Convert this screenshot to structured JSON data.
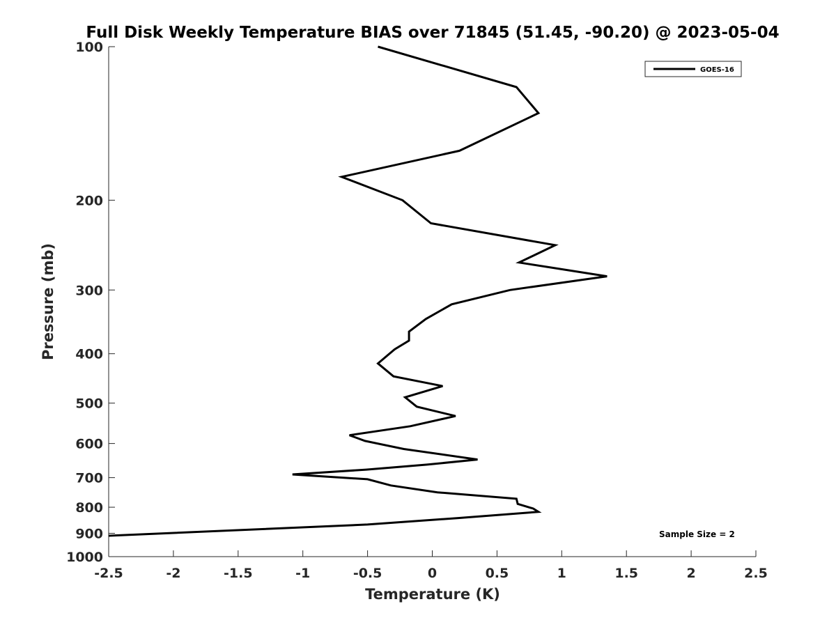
{
  "chart_data": {
    "type": "line",
    "title": "Full Disk Weekly Temperature BIAS over 71845 (51.45, -90.20) @ 2023-05-04",
    "xlabel": "Temperature (K)",
    "ylabel": "Pressure (mb)",
    "xlim": [
      -2.5,
      2.5
    ],
    "ylim": [
      100,
      1000
    ],
    "y_scale": "log",
    "y_reversed": true,
    "grid": false,
    "legend_position": "top-right",
    "x_ticks": [
      "-2.5",
      "-2",
      "-1.5",
      "-1",
      "-0.5",
      "0",
      "0.5",
      "1",
      "1.5",
      "2",
      "2.5"
    ],
    "x_tick_values": [
      -2.5,
      -2,
      -1.5,
      -1,
      -0.5,
      0,
      0.5,
      1,
      1.5,
      2,
      2.5
    ],
    "y_ticks": [
      "100",
      "200",
      "300",
      "400",
      "500",
      "600",
      "700",
      "800",
      "900",
      "1000"
    ],
    "y_tick_values": [
      100,
      200,
      300,
      400,
      500,
      600,
      700,
      800,
      900,
      1000
    ],
    "annotation": "Sample Size = 2",
    "series": [
      {
        "name": "GOES-16",
        "color": "#000000",
        "points": [
          {
            "t": -0.42,
            "p": 100
          },
          {
            "t": 0.65,
            "p": 120
          },
          {
            "t": 0.82,
            "p": 135
          },
          {
            "t": 0.21,
            "p": 160
          },
          {
            "t": -0.7,
            "p": 180
          },
          {
            "t": -0.23,
            "p": 200
          },
          {
            "t": -0.01,
            "p": 222
          },
          {
            "t": 0.95,
            "p": 245
          },
          {
            "t": 0.67,
            "p": 265
          },
          {
            "t": 1.35,
            "p": 282
          },
          {
            "t": 0.6,
            "p": 300
          },
          {
            "t": 0.15,
            "p": 320
          },
          {
            "t": -0.05,
            "p": 342
          },
          {
            "t": -0.18,
            "p": 362
          },
          {
            "t": -0.18,
            "p": 377
          },
          {
            "t": -0.29,
            "p": 392
          },
          {
            "t": -0.42,
            "p": 418
          },
          {
            "t": -0.3,
            "p": 443
          },
          {
            "t": 0.08,
            "p": 463
          },
          {
            "t": -0.21,
            "p": 487
          },
          {
            "t": -0.12,
            "p": 508
          },
          {
            "t": 0.18,
            "p": 530
          },
          {
            "t": -0.17,
            "p": 555
          },
          {
            "t": -0.64,
            "p": 578
          },
          {
            "t": -0.52,
            "p": 593
          },
          {
            "t": -0.22,
            "p": 615
          },
          {
            "t": 0.35,
            "p": 645
          },
          {
            "t": -0.04,
            "p": 660
          },
          {
            "t": -0.51,
            "p": 675
          },
          {
            "t": -1.08,
            "p": 690
          },
          {
            "t": -0.5,
            "p": 705
          },
          {
            "t": -0.32,
            "p": 725
          },
          {
            "t": 0.04,
            "p": 748
          },
          {
            "t": 0.65,
            "p": 770
          },
          {
            "t": 0.66,
            "p": 788
          },
          {
            "t": 0.78,
            "p": 805
          },
          {
            "t": 0.82,
            "p": 817
          },
          {
            "t": 0.2,
            "p": 840
          },
          {
            "t": -0.5,
            "p": 865
          },
          {
            "t": -2.5,
            "p": 910
          }
        ]
      }
    ]
  }
}
